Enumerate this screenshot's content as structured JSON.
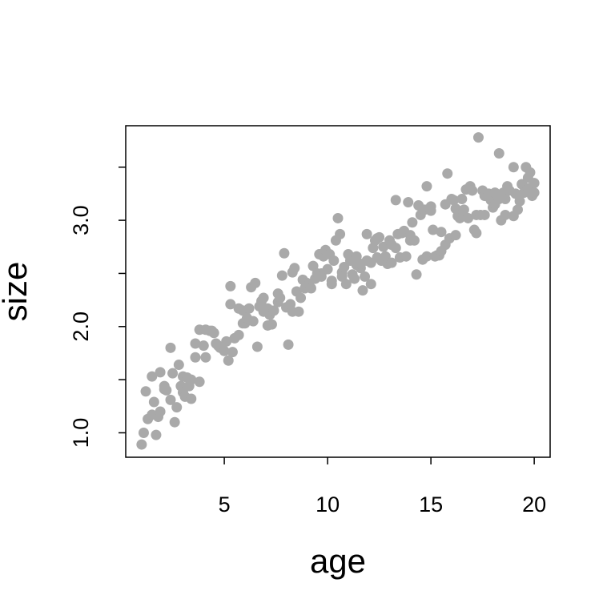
{
  "chart_data": {
    "type": "scatter",
    "x_label": "age",
    "y_label": "size",
    "color": "#a9a9a9",
    "xlim": [
      0.23,
      20.77
    ],
    "ylim": [
      0.77,
      3.89
    ],
    "xticks": [
      5,
      10,
      15,
      20
    ],
    "yticks": [
      {
        "value": 1,
        "label": "1.0"
      },
      {
        "value": 2,
        "label": "2.0"
      },
      {
        "value": 3,
        "label": "3.0"
      }
    ],
    "yticks_unlabeled": [
      1.5,
      2.5,
      3.5
    ],
    "x": [
      1.0,
      1.1,
      1.2,
      1.3,
      1.5,
      1.5,
      1.6,
      1.7,
      1.8,
      1.9,
      1.9,
      2.1,
      2.1,
      2.2,
      2.4,
      2.4,
      2.5,
      2.6,
      2.7,
      2.8,
      2.9,
      3.0,
      3.0,
      3.1,
      3.2,
      3.3,
      3.4,
      3.4,
      3.6,
      3.6,
      3.8,
      3.8,
      4.0,
      4.1,
      4.1,
      4.3,
      4.4,
      4.5,
      4.6,
      4.7,
      4.8,
      5.0,
      5.1,
      5.2,
      5.3,
      5.3,
      5.4,
      5.5,
      5.7,
      5.7,
      5.9,
      5.9,
      6.0,
      6.1,
      6.2,
      6.3,
      6.4,
      6.5,
      6.6,
      6.7,
      6.8,
      6.9,
      6.9,
      7.1,
      7.1,
      7.2,
      7.3,
      7.4,
      7.6,
      7.6,
      7.7,
      7.8,
      7.9,
      8.0,
      8.1,
      8.2,
      8.3,
      8.3,
      8.4,
      8.5,
      8.6,
      8.7,
      8.8,
      8.9,
      9.0,
      9.1,
      9.2,
      9.3,
      9.4,
      9.5,
      9.6,
      9.7,
      9.7,
      9.8,
      9.9,
      10.0,
      10.1,
      10.2,
      10.2,
      10.3,
      10.4,
      10.5,
      10.6,
      10.7,
      10.7,
      10.8,
      10.9,
      11.0,
      11.1,
      11.2,
      11.3,
      11.4,
      11.4,
      11.6,
      11.6,
      11.7,
      11.8,
      11.9,
      11.9,
      12.1,
      12.1,
      12.2,
      12.3,
      12.4,
      12.4,
      12.5,
      12.6,
      12.7,
      12.8,
      12.9,
      13.0,
      13.1,
      13.1,
      13.3,
      13.3,
      13.4,
      13.5,
      13.6,
      13.7,
      13.8,
      13.9,
      14.0,
      14.0,
      14.1,
      14.2,
      14.3,
      14.4,
      14.5,
      14.6,
      14.7,
      14.8,
      14.8,
      15.0,
      15.0,
      15.1,
      15.2,
      15.3,
      15.4,
      15.5,
      15.5,
      15.7,
      15.7,
      15.8,
      15.9,
      16.0,
      16.1,
      16.2,
      16.2,
      16.3,
      16.4,
      16.5,
      16.6,
      16.6,
      16.7,
      16.8,
      16.9,
      17.0,
      17.1,
      17.2,
      17.2,
      17.3,
      17.4,
      17.5,
      17.6,
      17.6,
      17.8,
      17.8,
      17.9,
      18.0,
      18.1,
      18.1,
      18.3,
      18.3,
      18.4,
      18.5,
      18.6,
      18.6,
      18.7,
      18.8,
      19.0,
      19.0,
      19.1,
      19.2,
      19.3,
      19.4,
      19.5,
      19.6,
      19.7,
      19.7,
      19.8,
      19.9,
      20.0,
      20.0
    ],
    "y": [
      0.89,
      1.0,
      1.39,
      1.13,
      1.53,
      1.17,
      1.29,
      0.98,
      1.15,
      1.2,
      1.57,
      1.41,
      1.44,
      1.4,
      1.31,
      1.8,
      1.56,
      1.1,
      1.24,
      1.64,
      1.44,
      1.38,
      1.53,
      1.34,
      1.52,
      1.44,
      1.5,
      1.32,
      1.84,
      1.71,
      1.48,
      1.97,
      1.82,
      1.71,
      1.97,
      1.96,
      1.96,
      1.94,
      1.84,
      1.82,
      1.8,
      1.77,
      1.86,
      1.68,
      2.38,
      2.21,
      1.76,
      1.89,
      1.92,
      2.17,
      2.03,
      2.15,
      2.03,
      2.08,
      2.17,
      2.37,
      2.05,
      2.41,
      1.81,
      2.19,
      2.24,
      2.27,
      2.14,
      2.17,
      2.01,
      2.11,
      2.02,
      2.15,
      2.31,
      2.23,
      2.27,
      2.48,
      2.69,
      2.18,
      1.83,
      2.21,
      2.51,
      2.14,
      2.55,
      2.33,
      2.14,
      2.27,
      2.44,
      2.36,
      2.41,
      2.4,
      2.36,
      2.57,
      2.45,
      2.5,
      2.68,
      2.5,
      2.47,
      2.66,
      2.72,
      2.54,
      2.68,
      2.4,
      2.43,
      2.62,
      2.81,
      3.02,
      2.87,
      2.51,
      2.47,
      2.56,
      2.4,
      2.68,
      2.62,
      2.49,
      2.45,
      2.66,
      2.58,
      2.55,
      2.59,
      2.34,
      2.47,
      2.87,
      2.62,
      2.6,
      2.4,
      2.74,
      2.81,
      2.83,
      2.65,
      2.84,
      2.62,
      2.75,
      2.66,
      2.59,
      2.81,
      2.6,
      2.77,
      2.74,
      3.19,
      2.87,
      2.65,
      2.88,
      2.9,
      2.66,
      3.17,
      2.86,
      2.81,
      2.98,
      2.81,
      2.49,
      3.14,
      3.05,
      2.63,
      3.1,
      3.32,
      2.66,
      3.13,
      3.09,
      2.91,
      2.66,
      2.67,
      2.67,
      2.89,
      2.71,
      3.15,
      2.77,
      3.44,
      2.83,
      3.2,
      3.19,
      3.11,
      2.86,
      3.04,
      3.02,
      3.2,
      3.04,
      3.1,
      3.29,
      3.02,
      3.32,
      3.28,
      2.91,
      2.88,
      3.05,
      3.78,
      3.05,
      3.28,
      3.23,
      3.05,
      3.25,
      3.22,
      3.19,
      3.12,
      3.26,
      3.15,
      3.63,
      3.2,
      3.0,
      3.26,
      3.05,
      3.2,
      3.32,
      3.28,
      3.04,
      3.5,
      3.25,
      3.1,
      3.18,
      3.34,
      3.26,
      3.5,
      3.3,
      3.4,
      3.45,
      3.23,
      3.26,
      3.35
    ]
  }
}
